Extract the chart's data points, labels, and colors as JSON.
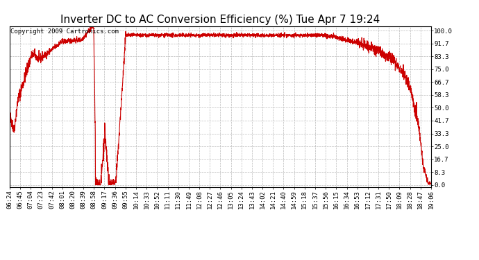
{
  "title": "Inverter DC to AC Conversion Efficiency (%) Tue Apr 7 19:24",
  "copyright_text": "Copyright 2009 Cartronics.com",
  "background_color": "#ffffff",
  "line_color": "#cc0000",
  "grid_color": "#bbbbbb",
  "yticks": [
    0.0,
    8.3,
    16.7,
    25.0,
    33.3,
    41.7,
    50.0,
    58.3,
    66.7,
    75.0,
    83.3,
    91.7,
    100.0
  ],
  "ylim": [
    -1.5,
    103
  ],
  "xtick_labels": [
    "06:24",
    "06:45",
    "07:04",
    "07:23",
    "07:42",
    "08:01",
    "08:20",
    "08:39",
    "08:58",
    "09:17",
    "09:36",
    "09:55",
    "10:14",
    "10:33",
    "10:52",
    "11:11",
    "11:30",
    "11:49",
    "12:08",
    "12:27",
    "12:46",
    "13:05",
    "13:24",
    "13:43",
    "14:02",
    "14:21",
    "14:40",
    "14:59",
    "15:18",
    "15:37",
    "15:56",
    "16:15",
    "16:34",
    "16:53",
    "17:12",
    "17:31",
    "17:50",
    "18:09",
    "18:28",
    "18:47",
    "19:06"
  ],
  "title_fontsize": 11,
  "copyright_fontsize": 6.5,
  "tick_fontsize": 6.5,
  "line_width": 0.8
}
